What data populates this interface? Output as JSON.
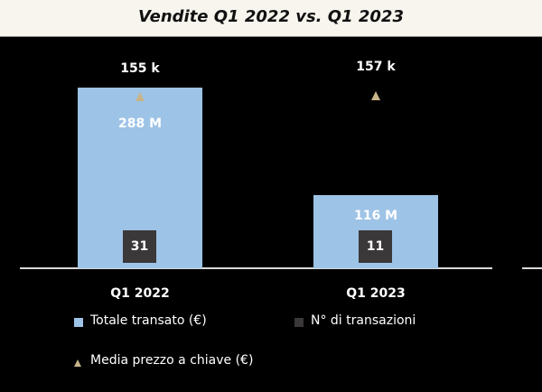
{
  "chart_data": {
    "type": "bar",
    "title": "Vendite Q1 2022 vs. Q1 2023",
    "categories": [
      "Q1 2022",
      "Q1 2023"
    ],
    "series": [
      {
        "name": "Totale transato (€)",
        "values": [
          288,
          116
        ],
        "labels": [
          "288 M",
          "116 M"
        ],
        "unit": "M",
        "color": "#9dc3e6"
      },
      {
        "name": "N° di transazioni",
        "values": [
          31,
          11
        ],
        "labels": [
          "31",
          "11"
        ],
        "color": "#3a3838"
      },
      {
        "name": "Media prezzo a chiave (€)",
        "values": [
          155,
          157
        ],
        "labels": [
          "155 k",
          "157 k"
        ],
        "unit": "k",
        "color": "#c8b48a"
      }
    ],
    "legend_position": "bottom",
    "grid": false
  }
}
